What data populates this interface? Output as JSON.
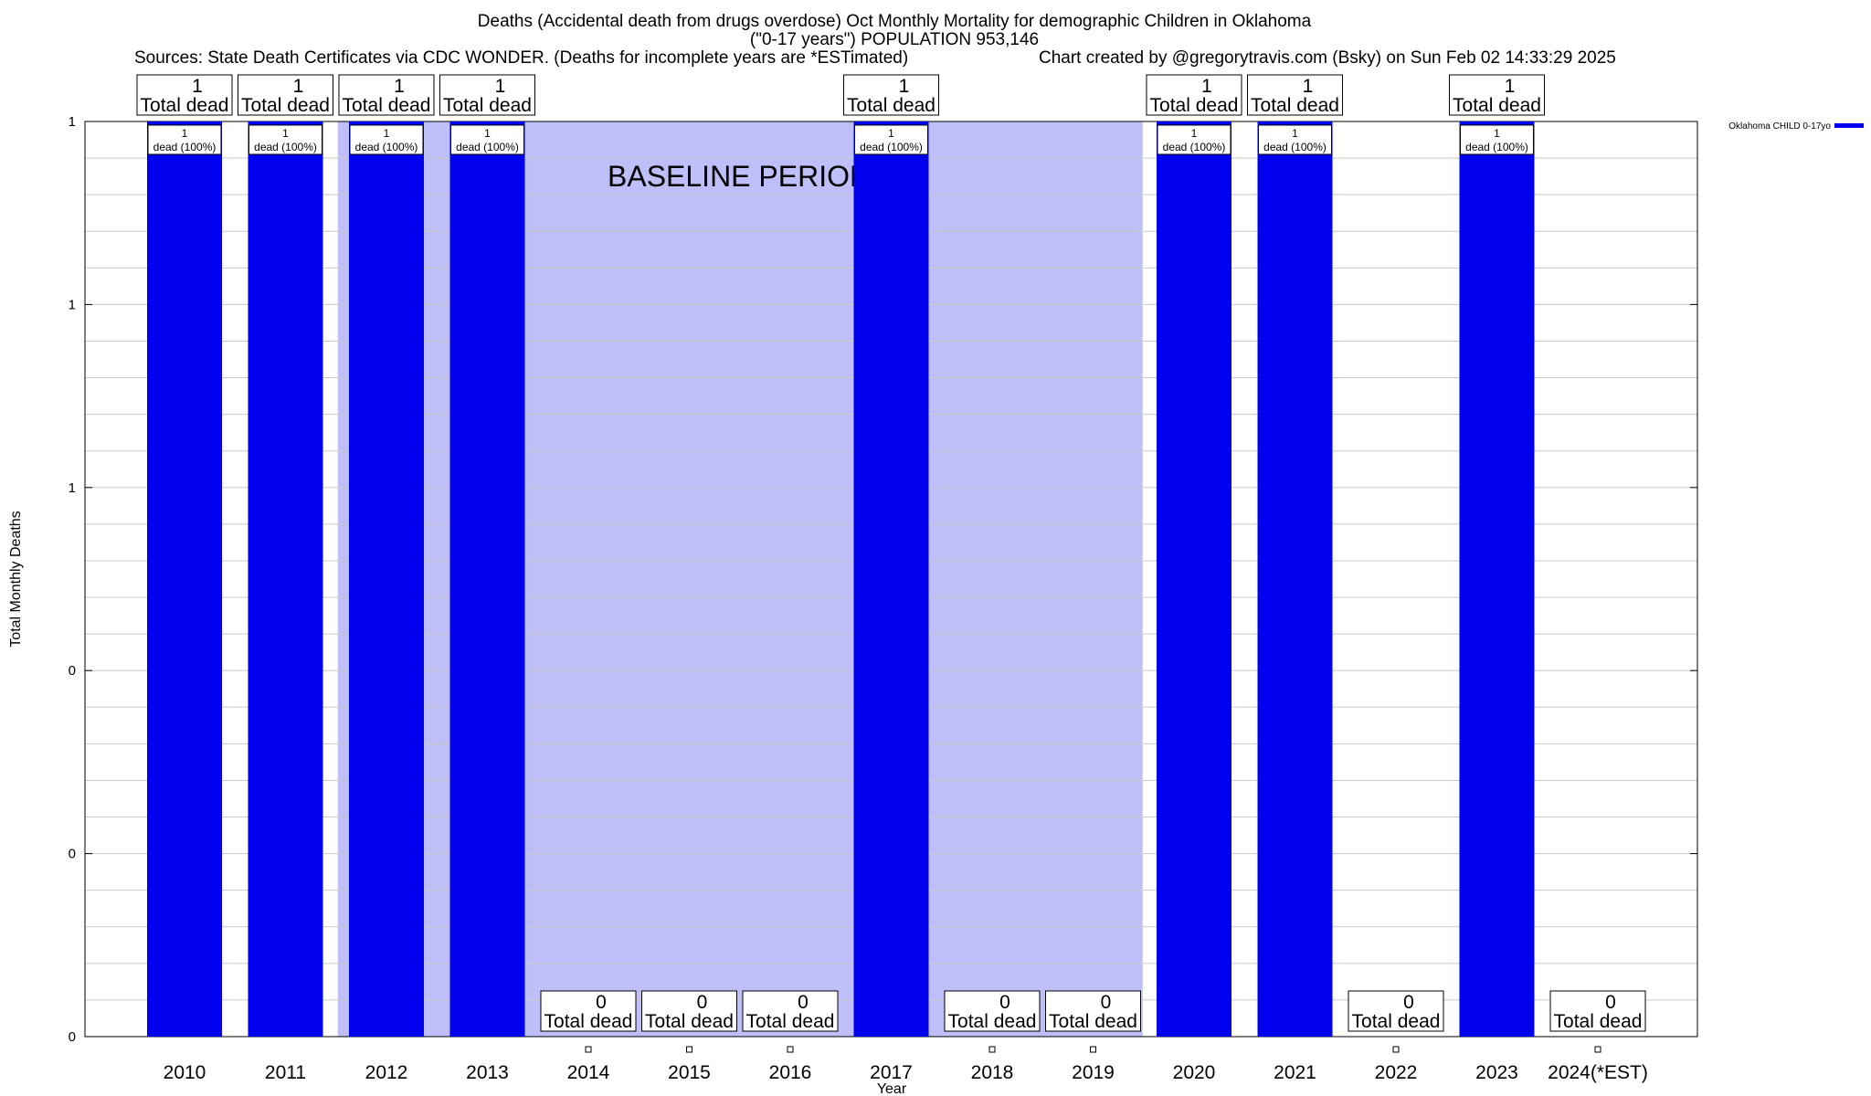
{
  "chart_data": {
    "type": "bar",
    "title": "Deaths (Accidental death from drugs overdose) Oct Monthly Mortality for demographic Children in Oklahoma",
    "subtitle": "(\"0-17 years\") POPULATION 953,146",
    "sources": "Sources: State Death Certificates via CDC WONDER. (Deaths for incomplete years are *ESTimated)",
    "credit": "Chart created by @gregorytravis.com (Bsky) on Sun Feb 02 14:33:29 2025",
    "xlabel": "Year",
    "ylabel": "Total Monthly Deaths",
    "categories": [
      "2010",
      "2011",
      "2012",
      "2013",
      "2014",
      "2015",
      "2016",
      "2017",
      "2018",
      "2019",
      "2020",
      "2021",
      "2022",
      "2023",
      "2024(*EST)"
    ],
    "series": [
      {
        "name": "Oklahoma CHILD 0-17yo",
        "values": [
          1,
          1,
          1,
          1,
          0,
          0,
          0,
          1,
          0,
          0,
          1,
          1,
          0,
          1,
          0
        ],
        "inside_labels": [
          "1",
          "1",
          "1",
          "1",
          "",
          "",
          "",
          "1",
          "",
          "",
          "1",
          "1",
          "",
          "1",
          ""
        ],
        "inside_sub_labels": [
          "dead (100%)",
          "dead (100%)",
          "dead (100%)",
          "dead (100%)",
          "",
          "",
          "",
          "dead (100%)",
          "",
          "",
          "dead (100%)",
          "dead (100%)",
          "",
          "dead (100%)",
          ""
        ]
      }
    ],
    "totals": [
      "1",
      "1",
      "1",
      "1",
      "0",
      "0",
      "0",
      "1",
      "0",
      "0",
      "1",
      "1",
      "0",
      "1",
      "0"
    ],
    "total_label": "Total dead",
    "yticks": [
      "0",
      "0",
      "0",
      "1",
      "1",
      "1"
    ],
    "ylim": [
      0,
      1
    ],
    "baseline_period": {
      "label": "BASELINE PERIOD",
      "from": "2012",
      "to": "2019"
    },
    "legend_position": "top-right",
    "grid": true,
    "colors": {
      "bar": "#0000ee",
      "baseline": "#bebef9",
      "grid": "#c8c8c8",
      "label_box_bg": "#ffffff"
    }
  }
}
